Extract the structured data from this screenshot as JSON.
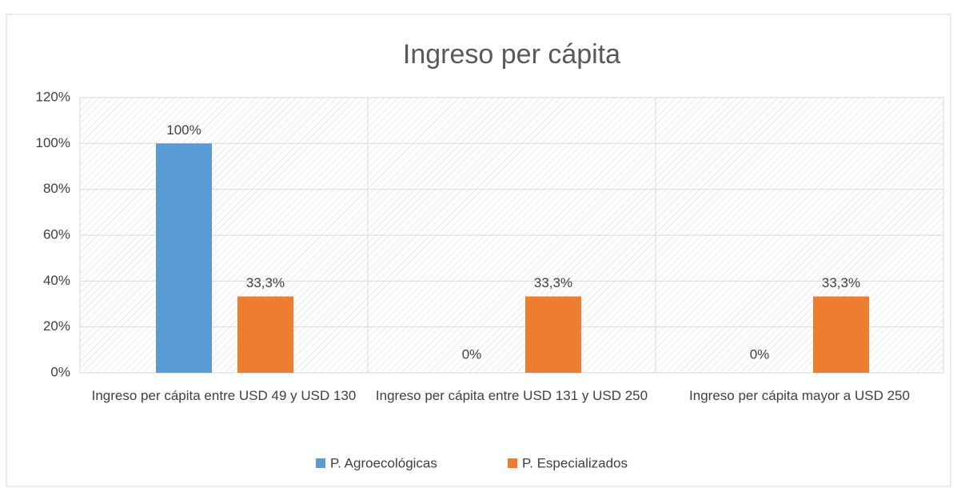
{
  "chart_data": {
    "type": "bar",
    "title": "Ingreso per cápita",
    "categories": [
      "Ingreso per cápita entre USD 49  y USD 130",
      "Ingreso per cápita entre USD 131 y USD 250",
      "Ingreso per cápita mayor a USD 250"
    ],
    "series": [
      {
        "name": "P. Agroecológicas",
        "color": "#5b9bd5",
        "values": [
          100,
          0,
          0
        ],
        "value_labels": [
          "100%",
          "0%",
          "0%"
        ]
      },
      {
        "name": "P. Especializados",
        "color": "#ed7d31",
        "values": [
          33.3,
          33.3,
          33.3
        ],
        "value_labels": [
          "33,3%",
          "33,3%",
          "33,3%"
        ]
      }
    ],
    "ylim": [
      0,
      120
    ],
    "yticks": [
      {
        "value": 0,
        "label": "0%"
      },
      {
        "value": 20,
        "label": "20%"
      },
      {
        "value": 40,
        "label": "40%"
      },
      {
        "value": 60,
        "label": "60%"
      },
      {
        "value": 80,
        "label": "80%"
      },
      {
        "value": 100,
        "label": "100%"
      },
      {
        "value": 120,
        "label": "120%"
      }
    ],
    "grid": true,
    "legend": "bottom"
  }
}
